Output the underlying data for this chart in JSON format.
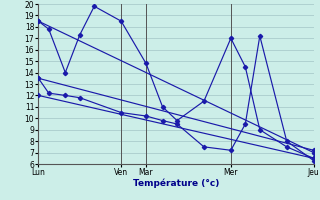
{
  "background_color": "#cceee8",
  "grid_color": "#aacccc",
  "line_color": "#1a1aaa",
  "ylim": [
    6,
    20
  ],
  "yticks": [
    6,
    7,
    8,
    9,
    10,
    11,
    12,
    13,
    14,
    15,
    16,
    17,
    18,
    19,
    20
  ],
  "xlabel": "Température (°c)",
  "day_labels": [
    "Lun",
    "Ven",
    "Mar",
    "Mer",
    "Jeu"
  ],
  "day_tick_x": [
    0,
    40,
    52,
    93,
    133
  ],
  "xlim": [
    0,
    133
  ],
  "lines": [
    {
      "x": [
        0,
        5,
        13,
        20,
        27,
        40,
        52,
        60,
        67,
        80,
        93,
        100,
        107,
        120,
        133
      ],
      "y": [
        18.5,
        17.8,
        14.0,
        17.3,
        19.8,
        18.5,
        14.8,
        11.0,
        9.8,
        11.5,
        17.0,
        14.5,
        9.0,
        7.5,
        6.5
      ]
    },
    {
      "x": [
        0,
        133
      ],
      "y": [
        18.5,
        7.0
      ]
    },
    {
      "x": [
        0,
        133
      ],
      "y": [
        13.5,
        7.2
      ]
    },
    {
      "x": [
        0,
        133
      ],
      "y": [
        12.0,
        6.5
      ]
    },
    {
      "x": [
        0,
        5,
        13,
        20,
        40,
        52,
        60,
        67,
        80,
        93,
        100,
        107,
        120,
        133
      ],
      "y": [
        13.5,
        12.2,
        12.0,
        11.8,
        10.5,
        10.2,
        9.8,
        9.5,
        7.5,
        7.2,
        9.5,
        17.2,
        8.0,
        6.3
      ]
    }
  ]
}
